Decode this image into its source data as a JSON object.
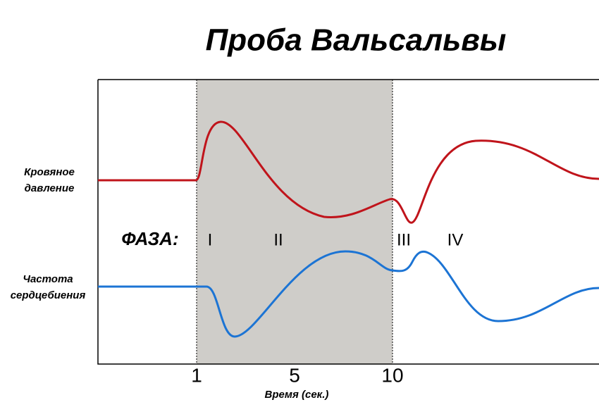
{
  "title": "Проба Вальсальвы",
  "curves": [
    {
      "label_lines": [
        "Кровяное",
        "давление"
      ]
    },
    {
      "label_lines": [
        "Частота",
        "сердцебиения"
      ]
    }
  ],
  "phase_label": "ФАЗА:",
  "phases": [
    "I",
    "II",
    "III",
    "IV"
  ],
  "x_ticks": [
    "1",
    "5",
    "10"
  ],
  "x_label": "Время (сек.)"
}
